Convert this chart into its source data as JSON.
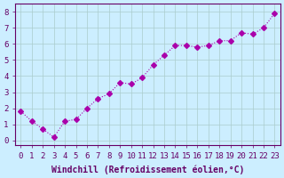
{
  "x": [
    0,
    1,
    2,
    3,
    4,
    5,
    6,
    7,
    8,
    9,
    10,
    11,
    12,
    13,
    14,
    15,
    16,
    17,
    18,
    19,
    20,
    21,
    22,
    23
  ],
  "y": [
    1.8,
    1.2,
    0.7,
    0.2,
    1.2,
    1.3,
    2.0,
    2.6,
    2.9,
    3.6,
    3.5,
    3.9,
    4.7,
    5.3,
    5.9,
    5.9,
    5.8,
    5.9,
    6.2,
    6.2,
    6.7,
    6.6,
    7.0,
    7.9
  ],
  "line_color": "#aa00aa",
  "marker": "D",
  "marker_size": 3,
  "bg_color": "#cceeff",
  "grid_color": "#aacccc",
  "xlabel": "Windchill (Refroidissement éolien,°C)",
  "ylabel_ticks": [
    0,
    1,
    2,
    3,
    4,
    5,
    6,
    7,
    8
  ],
  "xlim": [
    -0.5,
    23.5
  ],
  "ylim": [
    -0.3,
    8.5
  ],
  "xlabel_fontsize": 7,
  "tick_fontsize": 6.5,
  "title_color": "#660066",
  "axis_color": "#660066"
}
